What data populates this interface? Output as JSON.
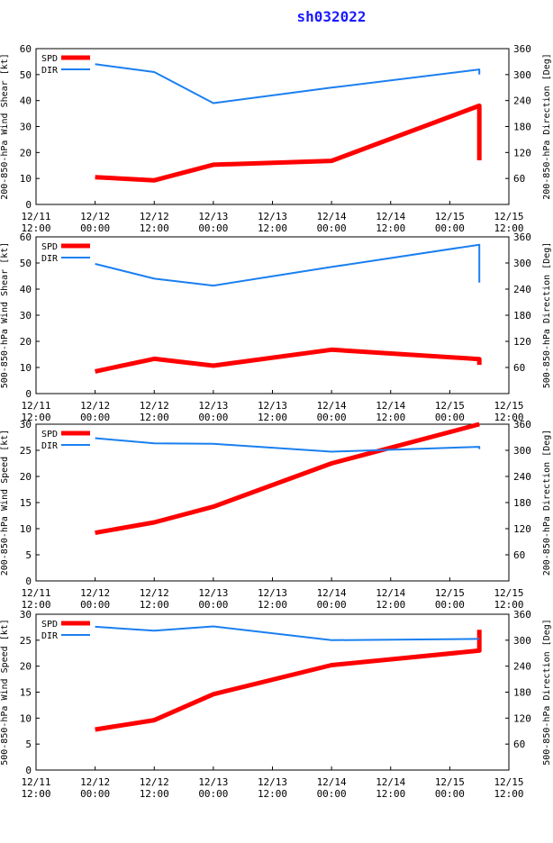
{
  "title": "sh032022",
  "colors": {
    "spd": "#ff0000",
    "dir": "#1a7ff0",
    "title": "#1a1aff"
  },
  "x_ticks": [
    {
      "day": "12/11",
      "time": "12:00"
    },
    {
      "day": "12/12",
      "time": "00:00"
    },
    {
      "day": "12/12",
      "time": "12:00"
    },
    {
      "day": "12/13",
      "time": "00:00"
    },
    {
      "day": "12/13",
      "time": "12:00"
    },
    {
      "day": "12/14",
      "time": "00:00"
    },
    {
      "day": "12/14",
      "time": "12:00"
    },
    {
      "day": "12/15",
      "time": "00:00"
    },
    {
      "day": "12/15",
      "time": "12:00"
    }
  ],
  "chart_data": [
    {
      "type": "line",
      "xlim": [
        "12/11 12:00",
        "12/15 12:00"
      ],
      "ylabel": "200-850-hPa Wind Shear [kt]",
      "ylabel2": "200-850-hPa Direction [Deg]",
      "ylim": [
        0,
        60
      ],
      "yticks": [
        0,
        10,
        20,
        30,
        40,
        50,
        60
      ],
      "y2lim": [
        0,
        360
      ],
      "y2ticks": [
        60,
        120,
        180,
        240,
        300,
        360
      ],
      "series": [
        {
          "name": "SPD",
          "axis": "left",
          "x": [
            "12/12 00:00",
            "12/12 12:00",
            "12/13 00:00",
            "12/14 00:00",
            "12/15 06:00",
            "12/15 06:00"
          ],
          "values": [
            10.5,
            9.3,
            15.3,
            16.8,
            38,
            17
          ]
        },
        {
          "name": "DIR",
          "axis": "right",
          "x": [
            "12/12 00:00",
            "12/12 12:00",
            "12/13 00:00",
            "12/14 00:00",
            "12/15 06:00",
            "12/15 06:00"
          ],
          "values": [
            324,
            306,
            234,
            270,
            312,
            300
          ]
        }
      ]
    },
    {
      "type": "line",
      "xlim": [
        "12/11 12:00",
        "12/15 12:00"
      ],
      "ylabel": "500-850-hPa Wind Shear [kt]",
      "ylabel2": "500-850-hPa Direction [Deg]",
      "ylim": [
        0,
        60
      ],
      "yticks": [
        0,
        10,
        20,
        30,
        40,
        50,
        60
      ],
      "y2lim": [
        0,
        360
      ],
      "y2ticks": [
        60,
        120,
        180,
        240,
        300,
        360
      ],
      "series": [
        {
          "name": "SPD",
          "axis": "left",
          "x": [
            "12/12 00:00",
            "12/12 12:00",
            "12/13 00:00",
            "12/14 00:00",
            "12/15 06:00",
            "12/15 06:00"
          ],
          "values": [
            8.5,
            13.3,
            10.7,
            16.8,
            13.2,
            11
          ]
        },
        {
          "name": "DIR",
          "axis": "right",
          "x": [
            "12/12 00:00",
            "12/12 12:00",
            "12/13 00:00",
            "12/14 00:00",
            "12/15 06:00",
            "12/15 06:00"
          ],
          "values": [
            298,
            264,
            248,
            291,
            342,
            255
          ]
        }
      ]
    },
    {
      "type": "line",
      "xlim": [
        "12/11 12:00",
        "12/15 12:00"
      ],
      "ylabel": "200-850-hPa Wind Speed [kt]",
      "ylabel2": "200-850-hPa Direction [Deg]",
      "ylim": [
        0,
        30
      ],
      "yticks": [
        0,
        5,
        10,
        15,
        20,
        25,
        30
      ],
      "y2lim": [
        0,
        360
      ],
      "y2ticks": [
        60,
        120,
        180,
        240,
        300,
        360
      ],
      "series": [
        {
          "name": "SPD",
          "axis": "left",
          "x": [
            "12/12 00:00",
            "12/12 12:00",
            "12/13 00:00",
            "12/14 00:00",
            "12/15 06:00"
          ],
          "values": [
            9.2,
            11.2,
            14.2,
            22.5,
            30
          ]
        },
        {
          "name": "DIR",
          "axis": "right",
          "x": [
            "12/12 00:00",
            "12/12 12:00",
            "12/13 00:00",
            "12/14 00:00",
            "12/15 06:00",
            "12/15 06:00"
          ],
          "values": [
            328,
            316,
            315,
            297,
            308,
            303
          ]
        }
      ]
    },
    {
      "type": "line",
      "xlim": [
        "12/11 12:00",
        "12/15 12:00"
      ],
      "ylabel": "500-850-hPa Wind Speed [kt]",
      "ylabel2": "500-850-hPa Direction [Deg]",
      "ylim": [
        0,
        30
      ],
      "yticks": [
        0,
        5,
        10,
        15,
        20,
        25,
        30
      ],
      "y2lim": [
        0,
        360
      ],
      "y2ticks": [
        60,
        120,
        180,
        240,
        300,
        360
      ],
      "series": [
        {
          "name": "SPD",
          "axis": "left",
          "x": [
            "12/12 00:00",
            "12/12 12:00",
            "12/13 00:00",
            "12/14 00:00",
            "12/15 06:00",
            "12/15 06:00"
          ],
          "values": [
            7.8,
            9.6,
            14.6,
            20.2,
            23,
            27
          ]
        },
        {
          "name": "DIR",
          "axis": "right",
          "x": [
            "12/12 00:00",
            "12/12 12:00",
            "12/13 00:00",
            "12/14 00:00",
            "12/15 06:00"
          ],
          "values": [
            331,
            322,
            332,
            300,
            303
          ]
        }
      ]
    }
  ]
}
